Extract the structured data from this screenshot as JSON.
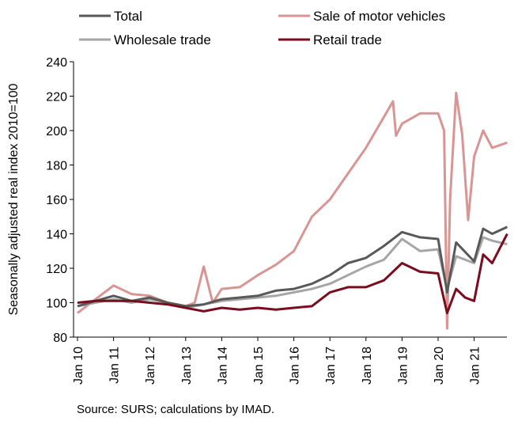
{
  "chart_data": {
    "type": "line",
    "ylabel": "Seasonally adjusted real index 2010=100",
    "ylim": [
      80,
      240
    ],
    "y_ticks": [
      "80",
      "100",
      "120",
      "140",
      "160",
      "180",
      "200",
      "220",
      "240"
    ],
    "x_tick_labels": [
      "Jan 10",
      "Jan 11",
      "Jan 12",
      "Jan 13",
      "Jan 14",
      "Jan 15",
      "Jan 16",
      "Jan 17",
      "Jan 18",
      "Jan 19",
      "Jan 20",
      "Jan 21"
    ],
    "legend_position": "top",
    "grid": false,
    "source": "Source: SURS; calculations by IMAD.",
    "series": [
      {
        "name": "Total",
        "color": "#595959",
        "points": [
          [
            "Jan 10",
            98
          ],
          [
            "Jul 10",
            101
          ],
          [
            "Jan 11",
            104
          ],
          [
            "Jul 11",
            101
          ],
          [
            "Jan 12",
            103
          ],
          [
            "Jul 12",
            100
          ],
          [
            "Jan 13",
            98
          ],
          [
            "Jul 13",
            99
          ],
          [
            "Jan 14",
            102
          ],
          [
            "Jul 14",
            103
          ],
          [
            "Jan 15",
            104
          ],
          [
            "Jul 15",
            107
          ],
          [
            "Jan 16",
            108
          ],
          [
            "Jul 16",
            111
          ],
          [
            "Jan 17",
            116
          ],
          [
            "Jul 17",
            123
          ],
          [
            "Jan 18",
            126
          ],
          [
            "Jul 18",
            133
          ],
          [
            "Jan 19",
            141
          ],
          [
            "Jul 19",
            138
          ],
          [
            "Jan 20",
            137
          ],
          [
            "Apr 20",
            106
          ],
          [
            "Jul 20",
            135
          ],
          [
            "Jan 21",
            124
          ],
          [
            "Apr 21",
            143
          ],
          [
            "Jul 21",
            140
          ],
          [
            "Dec 21",
            144
          ]
        ]
      },
      {
        "name": "Sale of motor vehicles",
        "color": "#d99594",
        "points": [
          [
            "Jan 10",
            94
          ],
          [
            "Jul 10",
            102
          ],
          [
            "Jan 11",
            110
          ],
          [
            "Jul 11",
            105
          ],
          [
            "Jan 12",
            104
          ],
          [
            "Jul 12",
            100
          ],
          [
            "Jan 13",
            98
          ],
          [
            "Apr 13",
            100
          ],
          [
            "Jul 13",
            121
          ],
          [
            "Oct 13",
            100
          ],
          [
            "Jan 14",
            108
          ],
          [
            "Jul 14",
            109
          ],
          [
            "Jan 15",
            116
          ],
          [
            "Jul 15",
            122
          ],
          [
            "Jan 16",
            130
          ],
          [
            "Jul 16",
            150
          ],
          [
            "Jan 17",
            160
          ],
          [
            "Jul 17",
            175
          ],
          [
            "Jan 18",
            190
          ],
          [
            "Jul 18",
            208
          ],
          [
            "Oct 18",
            217
          ],
          [
            "Nov 18",
            197
          ],
          [
            "Jan 19",
            204
          ],
          [
            "Jul 19",
            210
          ],
          [
            "Jan 20",
            210
          ],
          [
            "Mar 20",
            200
          ],
          [
            "Apr 20",
            85
          ],
          [
            "May 20",
            160
          ],
          [
            "Jul 20",
            222
          ],
          [
            "Sep 20",
            198
          ],
          [
            "Nov 20",
            148
          ],
          [
            "Jan 21",
            185
          ],
          [
            "Apr 21",
            200
          ],
          [
            "Jul 21",
            190
          ],
          [
            "Dec 21",
            193
          ]
        ]
      },
      {
        "name": "Wholesale trade",
        "color": "#a6a6a6",
        "points": [
          [
            "Jan 10",
            98
          ],
          [
            "Jul 10",
            100
          ],
          [
            "Jan 11",
            102
          ],
          [
            "Jul 11",
            100
          ],
          [
            "Jan 12",
            102
          ],
          [
            "Jul 12",
            100
          ],
          [
            "Jan 13",
            97
          ],
          [
            "Jul 13",
            99
          ],
          [
            "Jan 14",
            101
          ],
          [
            "Jul 14",
            102
          ],
          [
            "Jan 15",
            103
          ],
          [
            "Jul 15",
            104
          ],
          [
            "Jan 16",
            106
          ],
          [
            "Jul 16",
            108
          ],
          [
            "Jan 17",
            111
          ],
          [
            "Jul 17",
            116
          ],
          [
            "Jan 18",
            121
          ],
          [
            "Jul 18",
            125
          ],
          [
            "Jan 19",
            137
          ],
          [
            "Jul 19",
            130
          ],
          [
            "Jan 20",
            131
          ],
          [
            "Apr 20",
            108
          ],
          [
            "Jul 20",
            127
          ],
          [
            "Jan 21",
            123
          ],
          [
            "Apr 21",
            138
          ],
          [
            "Jul 21",
            136
          ],
          [
            "Dec 21",
            134
          ]
        ]
      },
      {
        "name": "Retail trade",
        "color": "#7b0c1e",
        "points": [
          [
            "Jan 10",
            100
          ],
          [
            "Jul 10",
            101
          ],
          [
            "Jan 11",
            101
          ],
          [
            "Jul 11",
            101
          ],
          [
            "Jan 12",
            100
          ],
          [
            "Jul 12",
            99
          ],
          [
            "Jan 13",
            97
          ],
          [
            "Jul 13",
            95
          ],
          [
            "Jan 14",
            97
          ],
          [
            "Jul 14",
            96
          ],
          [
            "Jan 15",
            97
          ],
          [
            "Jul 15",
            96
          ],
          [
            "Jan 16",
            97
          ],
          [
            "Jul 16",
            98
          ],
          [
            "Jan 17",
            106
          ],
          [
            "Jul 17",
            109
          ],
          [
            "Jan 18",
            109
          ],
          [
            "Jul 18",
            113
          ],
          [
            "Jan 19",
            123
          ],
          [
            "Jul 19",
            118
          ],
          [
            "Jan 20",
            117
          ],
          [
            "Apr 20",
            94
          ],
          [
            "Jul 20",
            108
          ],
          [
            "Oct 20",
            103
          ],
          [
            "Jan 21",
            101
          ],
          [
            "Apr 21",
            128
          ],
          [
            "Jul 21",
            123
          ],
          [
            "Dec 21",
            140
          ]
        ]
      }
    ]
  }
}
